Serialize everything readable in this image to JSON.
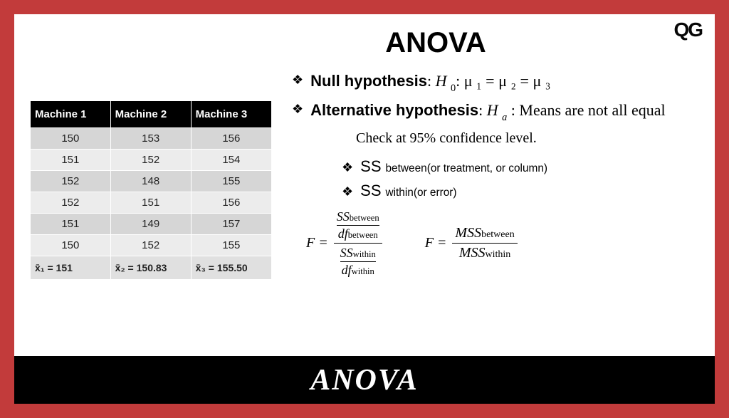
{
  "frame": {
    "border_color": "#c23b3b",
    "inner_bg": "#ffffff",
    "bottom_bg": "#000000"
  },
  "logo": "QG",
  "title": "ANOVA",
  "bottom_title": "ANOVA",
  "table": {
    "columns": [
      "Machine 1",
      "Machine 2",
      "Machine 3"
    ],
    "rows": [
      [
        "150",
        "153",
        "156"
      ],
      [
        "151",
        "152",
        "154"
      ],
      [
        "152",
        "148",
        "155"
      ],
      [
        "152",
        "151",
        "156"
      ],
      [
        "151",
        "149",
        "157"
      ],
      [
        "150",
        "152",
        "155"
      ]
    ],
    "footer": [
      "x̄₁ = 151",
      "x̄₂ = 150.83",
      "x̄₃ = 155.50"
    ],
    "header_bg": "#000000",
    "header_color": "#ffffff",
    "row_odd_bg": "#d6d6d6",
    "row_even_bg": "#ececec",
    "footer_bg": "#e0e0e0"
  },
  "hypotheses": {
    "null_label": "Null hypothesis",
    "null_expr_prefix": "H",
    "null_expr_sub": "0",
    "null_expr_body": ": μ ₁ = μ ₂ = μ ₃",
    "alt_label": "Alternative hypothesis",
    "alt_expr_prefix": "H",
    "alt_expr_sub": "a",
    "alt_expr_body": " : Means are not all equal"
  },
  "confidence": "Check at 95% confidence level.",
  "ss": {
    "between_label": "SS",
    "between_sub": "between(or treatment, or column)",
    "within_label": "SS",
    "within_sub": "within(or error)"
  },
  "formula1": {
    "F": "F",
    "eq": "=",
    "num_top": "SS",
    "num_top_sub": "between",
    "num_bot_pre": "d",
    "num_bot": "f",
    "num_bot_sub": "between",
    "den_top": "SS",
    "den_top_sub": "within",
    "den_bot_pre": "d",
    "den_bot": "f",
    "den_bot_sub": "within"
  },
  "formula2": {
    "F": "F",
    "eq": "=",
    "num": "MSS",
    "num_sub": "between",
    "den": "MSS",
    "den_sub": "within"
  }
}
